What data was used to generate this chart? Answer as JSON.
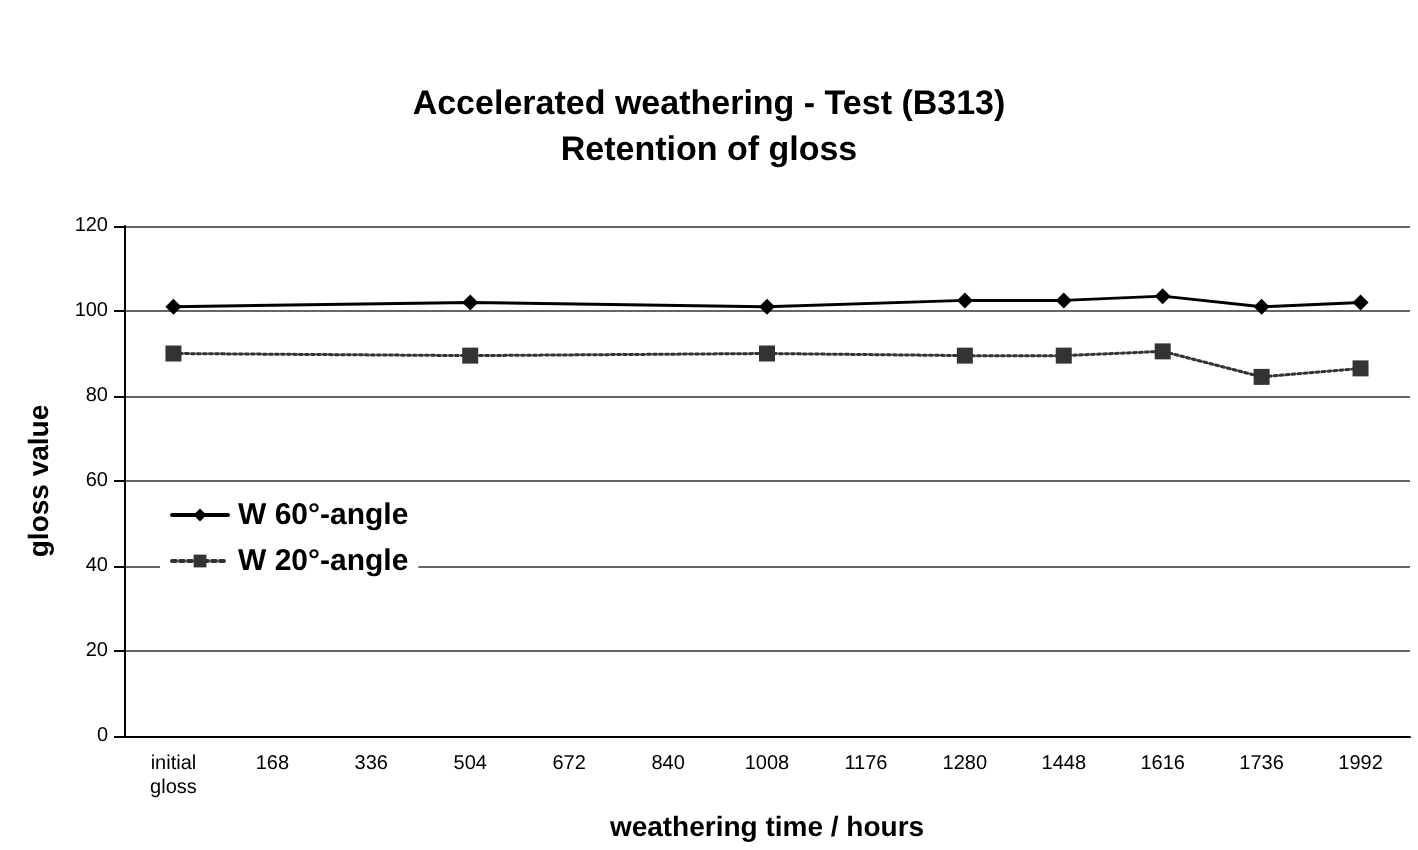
{
  "chart_data": {
    "type": "line",
    "title": "Accelerated weathering - Test (B313)",
    "subtitle": "Retention of gloss",
    "xlabel": "weathering time / hours",
    "ylabel": "gloss value",
    "categories": [
      "initial\ngloss",
      "168",
      "336",
      "504",
      "672",
      "840",
      "1008",
      "1176",
      "1280",
      "1448",
      "1616",
      "1736",
      "1992"
    ],
    "series": [
      {
        "name": "W 60°-angle",
        "color": "#000000",
        "marker": "diamond",
        "line_style": "solid",
        "values": [
          101,
          null,
          null,
          102,
          null,
          null,
          101,
          null,
          102.5,
          102.5,
          103.5,
          101,
          102
        ]
      },
      {
        "name": "W 20°-angle",
        "color": "#333333",
        "marker": "square",
        "line_style": "dotted",
        "values": [
          90,
          null,
          null,
          89.5,
          null,
          null,
          90,
          null,
          89.5,
          89.5,
          90.5,
          84.5,
          86.5
        ]
      }
    ],
    "ylim": [
      0,
      120
    ],
    "yticks": [
      0,
      20,
      40,
      60,
      80,
      100,
      120
    ],
    "grid": "y",
    "legend": "left"
  }
}
